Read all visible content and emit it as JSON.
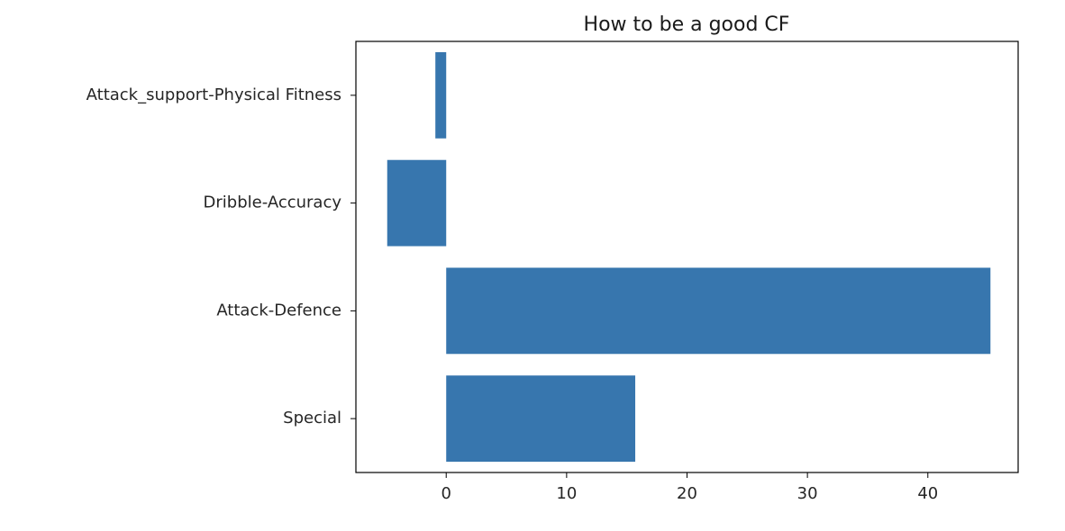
{
  "chart_data": {
    "type": "bar",
    "orientation": "horizontal",
    "title": "How to be a good CF",
    "xlabel": "",
    "ylabel": "",
    "categories": [
      "Special",
      "Attack-Defence",
      "Dribble-Accuracy",
      "Attack_support-Physical Fitness"
    ],
    "values": [
      15.7,
      45.2,
      -4.9,
      -0.9
    ],
    "xlim": [
      -7.5,
      47.5
    ],
    "xticks": [
      0,
      10,
      20,
      30,
      40
    ],
    "grid": false,
    "legend": "none",
    "bar_color": "#3776ae"
  }
}
